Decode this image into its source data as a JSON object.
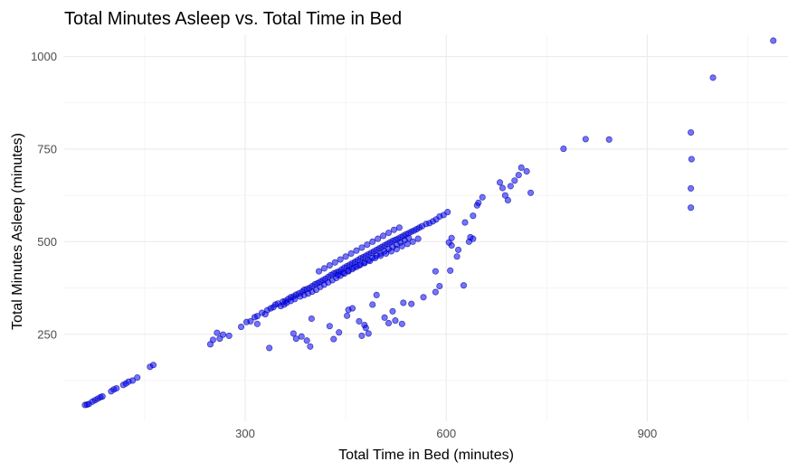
{
  "chart_data": {
    "type": "scatter",
    "title": "Total Minutes Asleep vs. Total Time in Bed",
    "xlabel": "Total Time in Bed (minutes)",
    "ylabel": "Total Minutes Asleep (minutes)",
    "xlim": [
      30,
      1110
    ],
    "ylim": [
      15,
      1060
    ],
    "x_ticks": [
      300,
      600,
      900
    ],
    "y_ticks": [
      250,
      500,
      750,
      1000
    ],
    "grid": true,
    "point_color": "#0000ff",
    "point_edge": "#00008b",
    "series": [
      {
        "points": [
          [
            61,
            59
          ],
          [
            64,
            60
          ],
          [
            67,
            62
          ],
          [
            72,
            68
          ],
          [
            76,
            72
          ],
          [
            80,
            76
          ],
          [
            84,
            80
          ],
          [
            87,
            82
          ],
          [
            100,
            96
          ],
          [
            104,
            101
          ],
          [
            108,
            104
          ],
          [
            118,
            113
          ],
          [
            122,
            117
          ],
          [
            126,
            122
          ],
          [
            132,
            125
          ],
          [
            139,
            133
          ],
          [
            158,
            162
          ],
          [
            163,
            167
          ],
          [
            248,
            223
          ],
          [
            252,
            235
          ],
          [
            258,
            254
          ],
          [
            262,
            238
          ],
          [
            267,
            249
          ],
          [
            276,
            246
          ],
          [
            294,
            270
          ],
          [
            302,
            283
          ],
          [
            308,
            285
          ],
          [
            314,
            296
          ],
          [
            318,
            299
          ],
          [
            325,
            308
          ],
          [
            330,
            304
          ],
          [
            333,
            315
          ],
          [
            338,
            320
          ],
          [
            342,
            323
          ],
          [
            345,
            330
          ],
          [
            349,
            333
          ],
          [
            353,
            326
          ],
          [
            356,
            338
          ],
          [
            360,
            340
          ],
          [
            364,
            345
          ],
          [
            368,
            350
          ],
          [
            372,
            352
          ],
          [
            376,
            357
          ],
          [
            380,
            360
          ],
          [
            385,
            365
          ],
          [
            388,
            370
          ],
          [
            392,
            372
          ],
          [
            396,
            375
          ],
          [
            400,
            380
          ],
          [
            404,
            385
          ],
          [
            408,
            388
          ],
          [
            412,
            392
          ],
          [
            416,
            396
          ],
          [
            420,
            400
          ],
          [
            424,
            405
          ],
          [
            428,
            410
          ],
          [
            432,
            414
          ],
          [
            436,
            417
          ],
          [
            440,
            420
          ],
          [
            444,
            425
          ],
          [
            448,
            430
          ],
          [
            452,
            434
          ],
          [
            456,
            438
          ],
          [
            460,
            442
          ],
          [
            464,
            446
          ],
          [
            468,
            450
          ],
          [
            472,
            455
          ],
          [
            476,
            458
          ],
          [
            480,
            462
          ],
          [
            484,
            466
          ],
          [
            488,
            470
          ],
          [
            492,
            474
          ],
          [
            496,
            478
          ],
          [
            500,
            482
          ],
          [
            504,
            486
          ],
          [
            508,
            490
          ],
          [
            512,
            494
          ],
          [
            516,
            498
          ],
          [
            520,
            502
          ],
          [
            524,
            505
          ],
          [
            528,
            508
          ],
          [
            532,
            512
          ],
          [
            536,
            516
          ],
          [
            540,
            520
          ],
          [
            544,
            523
          ],
          [
            548,
            527
          ],
          [
            552,
            530
          ],
          [
            556,
            534
          ],
          [
            560,
            538
          ],
          [
            564,
            542
          ],
          [
            570,
            548
          ],
          [
            575,
            550
          ],
          [
            580,
            555
          ],
          [
            585,
            560
          ],
          [
            590,
            568
          ],
          [
            596,
            572
          ],
          [
            602,
            580
          ],
          [
            358,
            330
          ],
          [
            362,
            335
          ],
          [
            368,
            340
          ],
          [
            374,
            345
          ],
          [
            382,
            352
          ],
          [
            388,
            356
          ],
          [
            394,
            360
          ],
          [
            400,
            365
          ],
          [
            406,
            370
          ],
          [
            412,
            378
          ],
          [
            418,
            384
          ],
          [
            424,
            390
          ],
          [
            430,
            396
          ],
          [
            436,
            402
          ],
          [
            442,
            408
          ],
          [
            448,
            414
          ],
          [
            454,
            420
          ],
          [
            460,
            426
          ],
          [
            466,
            432
          ],
          [
            472,
            438
          ],
          [
            478,
            444
          ],
          [
            484,
            450
          ],
          [
            490,
            456
          ],
          [
            496,
            462
          ],
          [
            502,
            468
          ],
          [
            508,
            474
          ],
          [
            514,
            480
          ],
          [
            520,
            486
          ],
          [
            526,
            492
          ],
          [
            532,
            498
          ],
          [
            538,
            504
          ],
          [
            544,
            510
          ],
          [
            410,
            420
          ],
          [
            418,
            428
          ],
          [
            426,
            436
          ],
          [
            434,
            444
          ],
          [
            442,
            452
          ],
          [
            450,
            460
          ],
          [
            458,
            468
          ],
          [
            466,
            476
          ],
          [
            474,
            484
          ],
          [
            482,
            492
          ],
          [
            490,
            500
          ],
          [
            498,
            508
          ],
          [
            506,
            516
          ],
          [
            514,
            524
          ],
          [
            522,
            532
          ],
          [
            530,
            538
          ],
          [
            438,
            410
          ],
          [
            446,
            416
          ],
          [
            454,
            422
          ],
          [
            462,
            430
          ],
          [
            470,
            436
          ],
          [
            478,
            442
          ],
          [
            486,
            448
          ],
          [
            494,
            456
          ],
          [
            502,
            462
          ],
          [
            510,
            468
          ],
          [
            518,
            474
          ],
          [
            526,
            480
          ],
          [
            534,
            488
          ],
          [
            542,
            494
          ],
          [
            550,
            500
          ],
          [
            558,
            508
          ],
          [
            318,
            278
          ],
          [
            336,
            213
          ],
          [
            372,
            252
          ],
          [
            376,
            238
          ],
          [
            384,
            244
          ],
          [
            392,
            233
          ],
          [
            397,
            217
          ],
          [
            399,
            292
          ],
          [
            426,
            272
          ],
          [
            432,
            237
          ],
          [
            440,
            255
          ],
          [
            452,
            300
          ],
          [
            454,
            316
          ],
          [
            460,
            320
          ],
          [
            470,
            285
          ],
          [
            474,
            246
          ],
          [
            478,
            275
          ],
          [
            480,
            267
          ],
          [
            484,
            252
          ],
          [
            490,
            330
          ],
          [
            496,
            356
          ],
          [
            508,
            295
          ],
          [
            514,
            280
          ],
          [
            520,
            312
          ],
          [
            524,
            287
          ],
          [
            534,
            278
          ],
          [
            536,
            335
          ],
          [
            548,
            332
          ],
          [
            566,
            350
          ],
          [
            584,
            364
          ],
          [
            584,
            420
          ],
          [
            590,
            380
          ],
          [
            606,
            422
          ],
          [
            616,
            460
          ],
          [
            626,
            382
          ],
          [
            634,
            500
          ],
          [
            640,
            508
          ],
          [
            636,
            512
          ],
          [
            618,
            478
          ],
          [
            608,
            490
          ],
          [
            604,
            498
          ],
          [
            608,
            510
          ],
          [
            628,
            552
          ],
          [
            640,
            570
          ],
          [
            646,
            598
          ],
          [
            648,
            605
          ],
          [
            654,
            620
          ],
          [
            680,
            660
          ],
          [
            684,
            645
          ],
          [
            688,
            625
          ],
          [
            692,
            612
          ],
          [
            696,
            650
          ],
          [
            702,
            665
          ],
          [
            708,
            680
          ],
          [
            712,
            700
          ],
          [
            720,
            690
          ],
          [
            726,
            632
          ],
          [
            775,
            751
          ],
          [
            808,
            777
          ],
          [
            843,
            776
          ],
          [
            965,
            795
          ],
          [
            966,
            723
          ],
          [
            965,
            644
          ],
          [
            965,
            592
          ],
          [
            998,
            943
          ],
          [
            1088,
            1043
          ]
        ]
      }
    ]
  }
}
